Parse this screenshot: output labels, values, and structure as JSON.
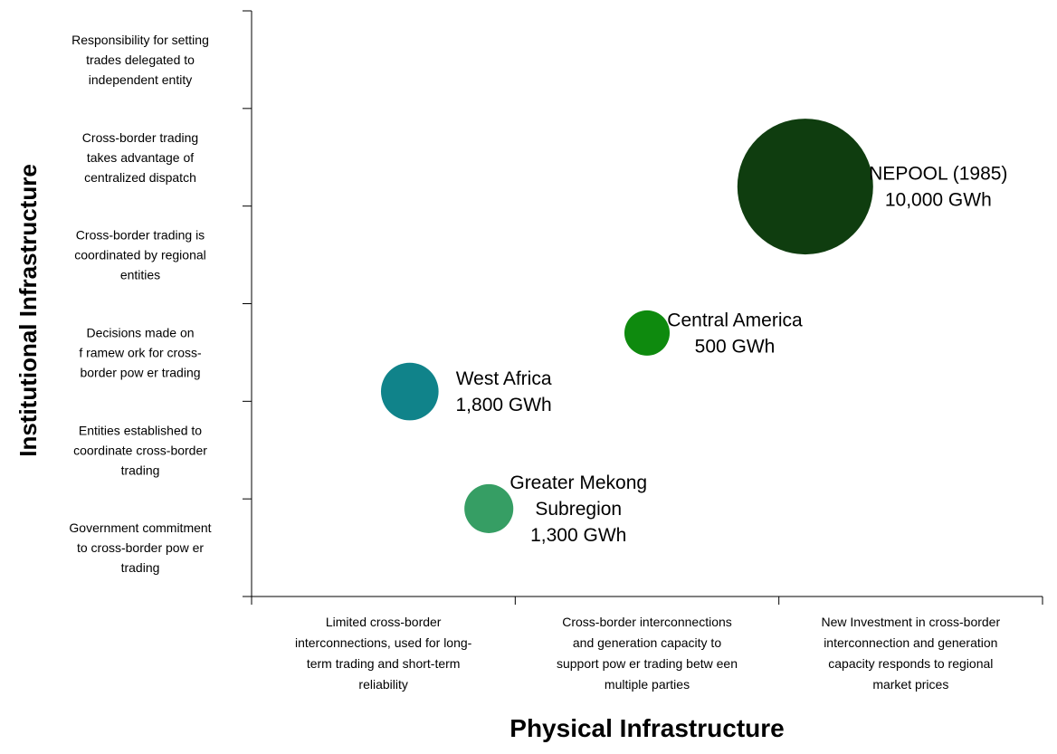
{
  "chart_data": {
    "type": "bubble",
    "title": "",
    "xlabel": "Physical Infrastructure",
    "ylabel": "Institutional Infrastructure",
    "xlim": [
      0,
      3
    ],
    "ylim": [
      0,
      6
    ],
    "x_categories": [
      "Limited cross-border interconnections, used for long-term trading and short-term reliability",
      "Cross-border interconnections and generation capacity to support pow er trading betw een multiple parties",
      "New  Investment in cross-border interconnection and generation capacity responds to regional market prices"
    ],
    "y_categories": [
      "Government commitment to cross-border pow er trading",
      "Entities established to coordinate cross-border trading",
      "Decisions made on framew ork for cross-border pow er trading",
      "Cross-border trading is coordinated by regional entities",
      "Cross-border trading takes advantage of centralized dispatch",
      "Responsibility for setting trades delegated to independent entity"
    ],
    "x_tick_lines": [
      [
        "Limited cross-border",
        "interconnections, used for long-",
        "term trading and short-term",
        "reliability"
      ],
      [
        "Cross-border interconnections",
        "and generation capacity to",
        "support pow er trading betw een",
        "multiple parties"
      ],
      [
        "New  Investment in cross-border",
        "interconnection and generation",
        "capacity responds to regional",
        "market prices"
      ]
    ],
    "y_tick_lines": [
      [
        "Government commitment",
        "to cross-border pow er",
        "trading"
      ],
      [
        "Entities established to",
        "coordinate cross-border",
        "trading"
      ],
      [
        "Decisions made on",
        "f ramew ork for cross-",
        "border pow er trading"
      ],
      [
        "Cross-border trading is",
        "coordinated by regional",
        "entities"
      ],
      [
        "Cross-border trading",
        "takes advantage of",
        "centralized dispatch"
      ],
      [
        "Responsibility for setting",
        "trades delegated to",
        "independent entity"
      ]
    ],
    "series": [
      {
        "name": "NEPOOL (1985)",
        "x": 2.1,
        "y": 4.2,
        "value": 10000,
        "unit": "GWh",
        "label_lines": [
          "NEPOOL (1985)",
          "10,000 GWh"
        ],
        "color": "#0f3d0f"
      },
      {
        "name": "Central America",
        "x": 1.5,
        "y": 2.7,
        "value": 500,
        "unit": "GWh",
        "label_lines": [
          "Central America",
          "500 GWh"
        ],
        "color": "#0e8a0e"
      },
      {
        "name": "West Africa",
        "x": 0.6,
        "y": 2.1,
        "value": 1800,
        "unit": "GWh",
        "label_lines": [
          "West Africa",
          "1,800 GWh"
        ],
        "color": "#10838a"
      },
      {
        "name": "Greater Mekong Subregion",
        "x": 0.9,
        "y": 0.9,
        "value": 1300,
        "unit": "GWh",
        "label_lines": [
          "Greater Mekong",
          "Subregion",
          "1,300 GWh"
        ],
        "color": "#369e64"
      }
    ],
    "grid": false,
    "legend": "none"
  }
}
